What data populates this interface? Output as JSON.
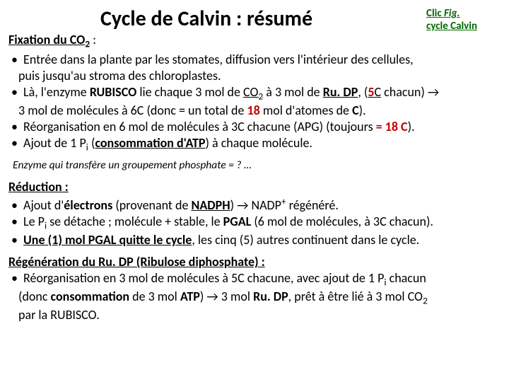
{
  "title": "Cycle de Calvin : résumé",
  "clicLink": {
    "line1": "Clic ",
    "line1b": "Fig.",
    "line2": "cycle Calvin",
    "color": "#006600"
  },
  "fixation": {
    "heading": "Fixation du CO",
    "heading_sub": "2",
    "heading_tail": " :",
    "b1a": "Entrée dans la plante par les stomates, diffusion vers l'intérieur des cellules,",
    "b1b": "puis jusqu'au stroma des chloroplastes.",
    "b2a": "Là, l'enzyme ",
    "b2b": "RUBISCO",
    "b2c": " lie chaque 3 mol de ",
    "b2d": "CO",
    "b2d_sub": "2",
    "b2e": " à 3 mol de ",
    "b2f": "Ru. DP",
    "b2g": ", (",
    "b2h": "5",
    "b2h2": "C",
    "b2i": " chacun) ",
    "b2j": "→",
    "b2k": "3 mol de molécules à 6",
    "b2k2": "C (donc = un total de ",
    "b2l": "18",
    "b2m": " mol d'atomes de ",
    "b2n": "C",
    "b2o": ").",
    "b3a": "Réorganisation en 6 mol de molécules à 3",
    "b3a2": "C chacune (APG) (toujours ",
    "b3b": "= 18 C",
    "b3c": ").",
    "b4a": "Ajout de 1 P",
    "b4a_sub": "i",
    "b4b": " (",
    "b4c": "consommation d'ATP",
    "b4d": ") à chaque molécule."
  },
  "note": "Enzyme qui transfère un groupement phosphate = ? …",
  "reduction": {
    "heading": "Réduction :",
    "b1a": "Ajout d'",
    "b1b": "électrons",
    "b1c": " (provenant de ",
    "b1d": "NADPH",
    "b1e": ") ",
    "b1f": "→",
    "b1g": " NADP",
    "b1g_sup": "+",
    "b1h": " régénéré.",
    "b2a": "Le P",
    "b2a_sub": "i",
    "b2b": " se détache ; molécule + stable, le ",
    "b2c": "PGAL",
    "b2d": " (6 mol de molécules, à 3",
    "b2d2": "C chacun).",
    "b3a": "Une (1) mol PGAL quitte le cycle",
    "b3b": ", les cinq (5) autres continuent dans le cycle."
  },
  "regen": {
    "heading": "Régénération du Ru. DP (Ribulose diphosphate) :",
    "b1a": "Réorganisation en 3 mol de molécules à 5",
    "b1a2": "C chacune, avec ajout de 1 P",
    "b1a_sub": "i",
    "b1b": " chacun",
    "b1c": "(donc ",
    "b1d": "consommation",
    "b1e": " de 3 mol ",
    "b1f": "ATP",
    "b1g": ") ",
    "b1h": "→",
    "b1i": " 3 mol ",
    "b1j": "Ru. DP",
    "b1k": ", prêt à être lié à 3 mol CO",
    "b1k_sub": "2",
    "b1l": "par la RUBISCO."
  }
}
